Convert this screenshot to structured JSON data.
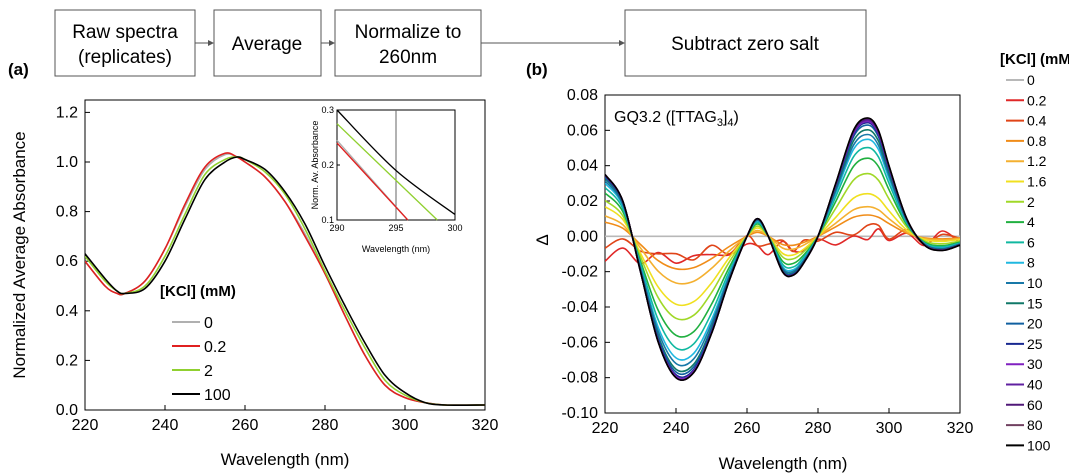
{
  "flow": {
    "boxes": [
      {
        "line1": "Raw spectra",
        "line2": "(replicates)"
      },
      {
        "line1": "Average",
        "line2": ""
      },
      {
        "line1": "Normalize to",
        "line2": "260nm"
      },
      {
        "line1": "Subtract zero salt",
        "line2": ""
      }
    ]
  },
  "chart_data": [
    {
      "panel": "(a)",
      "type": "line",
      "title": "",
      "xlabel": "Wavelength (nm)",
      "ylabel": "Normalized Average Absorbance",
      "xlim": [
        220,
        320
      ],
      "ylim": [
        0.0,
        1.25
      ],
      "xticks": [
        "220",
        "240",
        "260",
        "280",
        "300",
        "320"
      ],
      "yticks": [
        "0.0",
        "0.2",
        "0.4",
        "0.6",
        "0.8",
        "1.0",
        "1.2"
      ],
      "legend": {
        "title": "[KCl] (mM)",
        "position": "bottom-left"
      },
      "series": [
        {
          "name": "0",
          "color": "#b0b0b0",
          "x": [
            220,
            225,
            228,
            230,
            235,
            240,
            245,
            250,
            255,
            258,
            260,
            265,
            270,
            275,
            280,
            285,
            290,
            295,
            300,
            305,
            310,
            320
          ],
          "y": [
            0.6,
            0.5,
            0.47,
            0.47,
            0.52,
            0.65,
            0.82,
            0.97,
            1.03,
            1.02,
            1.0,
            0.94,
            0.84,
            0.71,
            0.55,
            0.38,
            0.22,
            0.1,
            0.05,
            0.03,
            0.02,
            0.02
          ]
        },
        {
          "name": "0.2",
          "color": "#e02020",
          "x": [
            220,
            225,
            228,
            230,
            235,
            240,
            245,
            250,
            255,
            258,
            260,
            265,
            270,
            275,
            280,
            285,
            290,
            295,
            300,
            305,
            310,
            320
          ],
          "y": [
            0.6,
            0.5,
            0.47,
            0.47,
            0.52,
            0.65,
            0.83,
            0.98,
            1.035,
            1.02,
            1.0,
            0.94,
            0.84,
            0.7,
            0.55,
            0.38,
            0.22,
            0.1,
            0.05,
            0.03,
            0.02,
            0.02
          ]
        },
        {
          "name": "2",
          "color": "#90d030",
          "x": [
            220,
            225,
            228,
            230,
            235,
            240,
            245,
            250,
            255,
            258,
            260,
            265,
            270,
            275,
            280,
            285,
            290,
            295,
            300,
            305,
            310,
            320
          ],
          "y": [
            0.62,
            0.52,
            0.48,
            0.47,
            0.5,
            0.62,
            0.79,
            0.95,
            1.01,
            1.02,
            1.01,
            0.96,
            0.87,
            0.73,
            0.56,
            0.4,
            0.25,
            0.12,
            0.06,
            0.03,
            0.02,
            0.02
          ]
        },
        {
          "name": "100",
          "color": "#000000",
          "x": [
            220,
            225,
            228,
            230,
            235,
            240,
            245,
            250,
            255,
            258,
            260,
            265,
            270,
            275,
            280,
            285,
            290,
            295,
            300,
            305,
            310,
            320
          ],
          "y": [
            0.63,
            0.53,
            0.48,
            0.47,
            0.49,
            0.6,
            0.77,
            0.93,
            1.0,
            1.02,
            1.01,
            0.97,
            0.88,
            0.75,
            0.58,
            0.42,
            0.27,
            0.14,
            0.07,
            0.03,
            0.02,
            0.02
          ]
        }
      ],
      "inset": {
        "ylabel": "Norm. Av. Absorbance",
        "xlabel": "Wavelength (nm)",
        "xlim": [
          290,
          300
        ],
        "ylim": [
          0.1,
          0.3
        ],
        "xticks": [
          "290",
          "295",
          "300"
        ],
        "yticks": [
          "0.1",
          "0.2",
          "0.3"
        ],
        "vline": 295,
        "series": [
          {
            "name": "0",
            "color": "#b0b0b0",
            "x": [
              290,
              296
            ],
            "y": [
              0.245,
              0.1
            ]
          },
          {
            "name": "0.2",
            "color": "#e02020",
            "x": [
              290,
              296
            ],
            "y": [
              0.24,
              0.1
            ]
          },
          {
            "name": "2",
            "color": "#90d030",
            "x": [
              290,
              298.5
            ],
            "y": [
              0.275,
              0.1
            ]
          },
          {
            "name": "100",
            "color": "#000000",
            "x": [
              290,
              295,
              300
            ],
            "y": [
              0.3,
              0.19,
              0.11
            ]
          }
        ]
      }
    },
    {
      "panel": "(b)",
      "type": "line",
      "annotation": "GQ3.2 ([TTAG",
      "annotation_sub": "3",
      "annotation_end": "]",
      "annotation_sub2": "4",
      "annotation_close": ")",
      "xlabel": "Wavelength (nm)",
      "ylabel": "Δ",
      "xlim": [
        220,
        320
      ],
      "ylim": [
        -0.1,
        0.08
      ],
      "xticks": [
        "220",
        "240",
        "260",
        "280",
        "300",
        "320"
      ],
      "yticks": [
        "-0.10",
        "-0.08",
        "-0.06",
        "-0.04",
        "-0.02",
        "0.00",
        "0.02",
        "0.04",
        "0.06",
        "0.08"
      ],
      "legend": {
        "title": "[KCl] (mM)",
        "position": "right"
      },
      "x": [
        220,
        225,
        230,
        235,
        240,
        245,
        250,
        255,
        260,
        263,
        266,
        270,
        273,
        276,
        280,
        285,
        290,
        294,
        297,
        300,
        305,
        310,
        315,
        320
      ],
      "series": [
        {
          "name": "0",
          "color": "#b8b8b8",
          "a": 0,
          "b": 0
        },
        {
          "name": "0.2",
          "color": "#e02828",
          "a": 0.04,
          "b": 0.05
        },
        {
          "name": "0.4",
          "color": "#e04418",
          "a": 0.08,
          "b": 0.09
        },
        {
          "name": "0.8",
          "color": "#f08c18",
          "a": 0.23,
          "b": 0.18
        },
        {
          "name": "1.2",
          "color": "#f4b030",
          "a": 0.33,
          "b": 0.25
        },
        {
          "name": "1.6",
          "color": "#f0e020",
          "a": 0.48,
          "b": 0.36
        },
        {
          "name": "2",
          "color": "#a0d828",
          "a": 0.58,
          "b": 0.53
        },
        {
          "name": "4",
          "color": "#20b040",
          "a": 0.7,
          "b": 0.66
        },
        {
          "name": "6",
          "color": "#10b8a0",
          "a": 0.79,
          "b": 0.75
        },
        {
          "name": "8",
          "color": "#20b8e0",
          "a": 0.86,
          "b": 0.82
        },
        {
          "name": "10",
          "color": "#1878a8",
          "a": 0.9,
          "b": 0.86
        },
        {
          "name": "15",
          "color": "#107868",
          "a": 0.94,
          "b": 0.9
        },
        {
          "name": "20",
          "color": "#1060a0",
          "a": 0.96,
          "b": 0.94
        },
        {
          "name": "25",
          "color": "#182890",
          "a": 0.98,
          "b": 0.96
        },
        {
          "name": "30",
          "color": "#8020c0",
          "a": 0.99,
          "b": 0.97
        },
        {
          "name": "40",
          "color": "#6020a0",
          "a": 1.0,
          "b": 0.98
        },
        {
          "name": "60",
          "color": "#501878",
          "a": 1.0,
          "b": 0.99
        },
        {
          "name": "80",
          "color": "#704060",
          "a": 1.0,
          "b": 1.0
        },
        {
          "name": "100",
          "color": "#000000",
          "a": 1.0,
          "b": 1.0
        }
      ],
      "full_profile": [
        0.035,
        0.02,
        -0.02,
        -0.06,
        -0.08,
        -0.077,
        -0.055,
        -0.025,
        0.0,
        0.01,
        0.0,
        -0.02,
        -0.022,
        -0.015,
        0.0,
        0.03,
        0.06,
        0.067,
        0.06,
        0.04,
        0.01,
        -0.005,
        -0.008,
        -0.005
      ]
    }
  ]
}
